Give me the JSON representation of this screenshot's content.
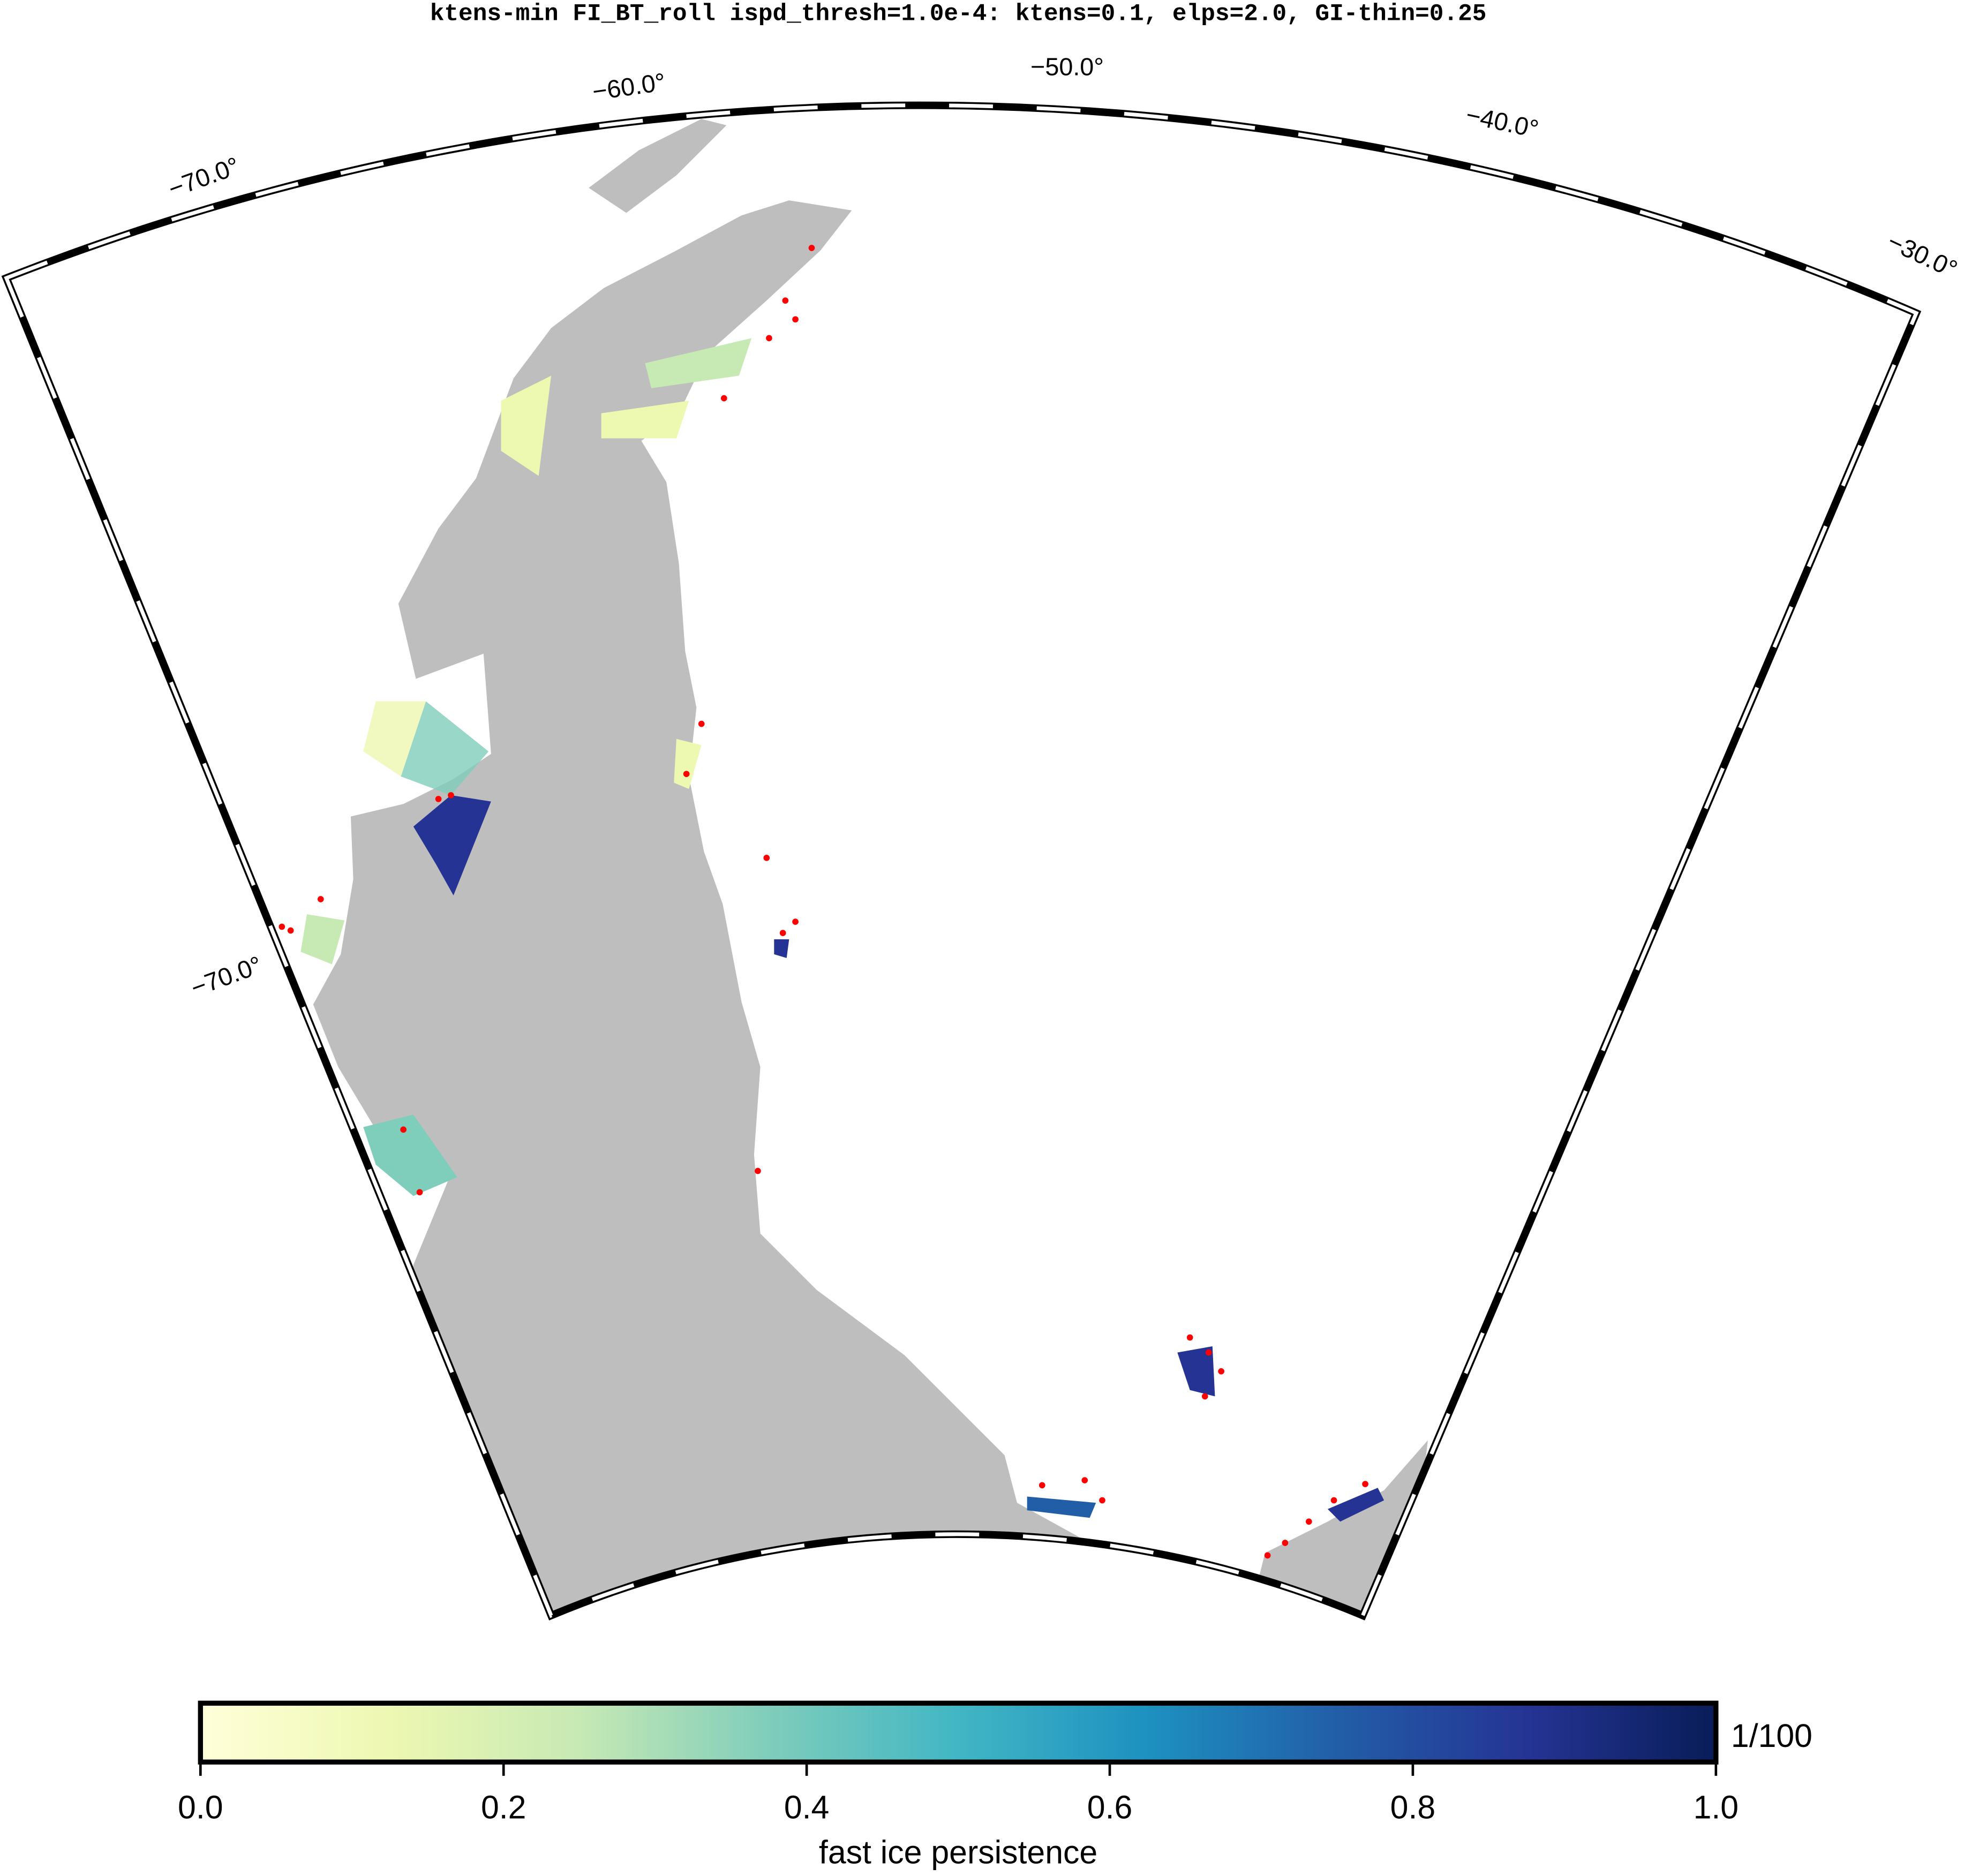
{
  "title": "ktens-min FI_BT_roll ispd_thresh=1.0e-4: ktens=0.1, elps=2.0, GI-thin=0.25",
  "map": {
    "meridian_labels": [
      {
        "value": -70,
        "label": "−70.0°"
      },
      {
        "value": -60,
        "label": "−60.0°"
      },
      {
        "value": -50,
        "label": "−50.0°"
      },
      {
        "value": -40,
        "label": "−40.0°"
      },
      {
        "value": -30,
        "label": "−30.0°"
      }
    ],
    "parallel_labels": [
      {
        "value": -70,
        "label": "−70.0°"
      }
    ],
    "land_color": "#bebebe"
  },
  "colorbar": {
    "label": "fast ice persistence",
    "unit": "1/100",
    "range": [
      0,
      1
    ],
    "ticks": [
      {
        "value": 0,
        "label": "0.0"
      },
      0.2,
      0.4,
      0.6,
      0.8,
      {
        "value": 1,
        "label": "1.0"
      }
    ],
    "colors": [
      "#ffffd9",
      "#edf8b1",
      "#c7e9b4",
      "#7fcdbb",
      "#41b6c4",
      "#1d91c0",
      "#225ea8",
      "#253494",
      "#081d58"
    ]
  }
}
